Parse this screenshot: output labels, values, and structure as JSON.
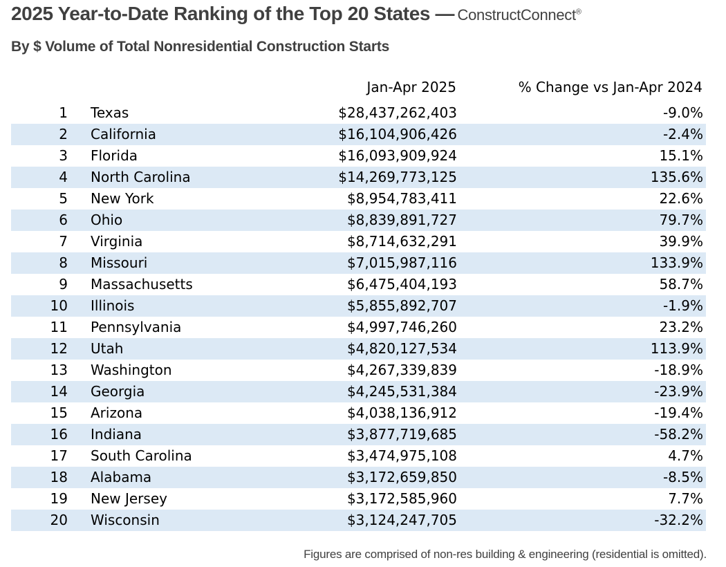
{
  "header": {
    "title": "2025 Year-to-Date Ranking of the Top 20 States —",
    "brand": "ConstructConnect",
    "brand_mark": "®",
    "subtitle": "By $ Volume of Total Nonresidential Construction Starts"
  },
  "table": {
    "columns": {
      "value": "Jan-Apr 2025",
      "change": "% Change vs Jan-Apr 2024"
    },
    "shade_color": "#dce9f5",
    "rows": [
      {
        "rank": "1",
        "state": "Texas",
        "value": "$28,437,262,403",
        "change": "-9.0%"
      },
      {
        "rank": "2",
        "state": "California",
        "value": "$16,104,906,426",
        "change": "-2.4%"
      },
      {
        "rank": "3",
        "state": "Florida",
        "value": "$16,093,909,924",
        "change": "15.1%"
      },
      {
        "rank": "4",
        "state": "North Carolina",
        "value": "$14,269,773,125",
        "change": "135.6%"
      },
      {
        "rank": "5",
        "state": "New York",
        "value": "$8,954,783,411",
        "change": "22.6%"
      },
      {
        "rank": "6",
        "state": "Ohio",
        "value": "$8,839,891,727",
        "change": "79.7%"
      },
      {
        "rank": "7",
        "state": "Virginia",
        "value": "$8,714,632,291",
        "change": "39.9%"
      },
      {
        "rank": "8",
        "state": "Missouri",
        "value": "$7,015,987,116",
        "change": "133.9%"
      },
      {
        "rank": "9",
        "state": "Massachusetts",
        "value": "$6,475,404,193",
        "change": "58.7%"
      },
      {
        "rank": "10",
        "state": "Illinois",
        "value": "$5,855,892,707",
        "change": "-1.9%"
      },
      {
        "rank": "11",
        "state": "Pennsylvania",
        "value": "$4,997,746,260",
        "change": "23.2%"
      },
      {
        "rank": "12",
        "state": "Utah",
        "value": "$4,820,127,534",
        "change": "113.9%"
      },
      {
        "rank": "13",
        "state": "Washington",
        "value": "$4,267,339,839",
        "change": "-18.9%"
      },
      {
        "rank": "14",
        "state": "Georgia",
        "value": "$4,245,531,384",
        "change": "-23.9%"
      },
      {
        "rank": "15",
        "state": "Arizona",
        "value": "$4,038,136,912",
        "change": "-19.4%"
      },
      {
        "rank": "16",
        "state": "Indiana",
        "value": "$3,877,719,685",
        "change": "-58.2%"
      },
      {
        "rank": "17",
        "state": "South Carolina",
        "value": "$3,474,975,108",
        "change": "4.7%"
      },
      {
        "rank": "18",
        "state": "Alabama",
        "value": "$3,172,659,850",
        "change": "-8.5%"
      },
      {
        "rank": "19",
        "state": "New Jersey",
        "value": "$3,172,585,960",
        "change": "7.7%"
      },
      {
        "rank": "20",
        "state": "Wisconsin",
        "value": "$3,124,247,705",
        "change": "-32.2%"
      }
    ]
  },
  "footnote": "Figures are comprised of non-res building & engineering (residential is omitted)."
}
